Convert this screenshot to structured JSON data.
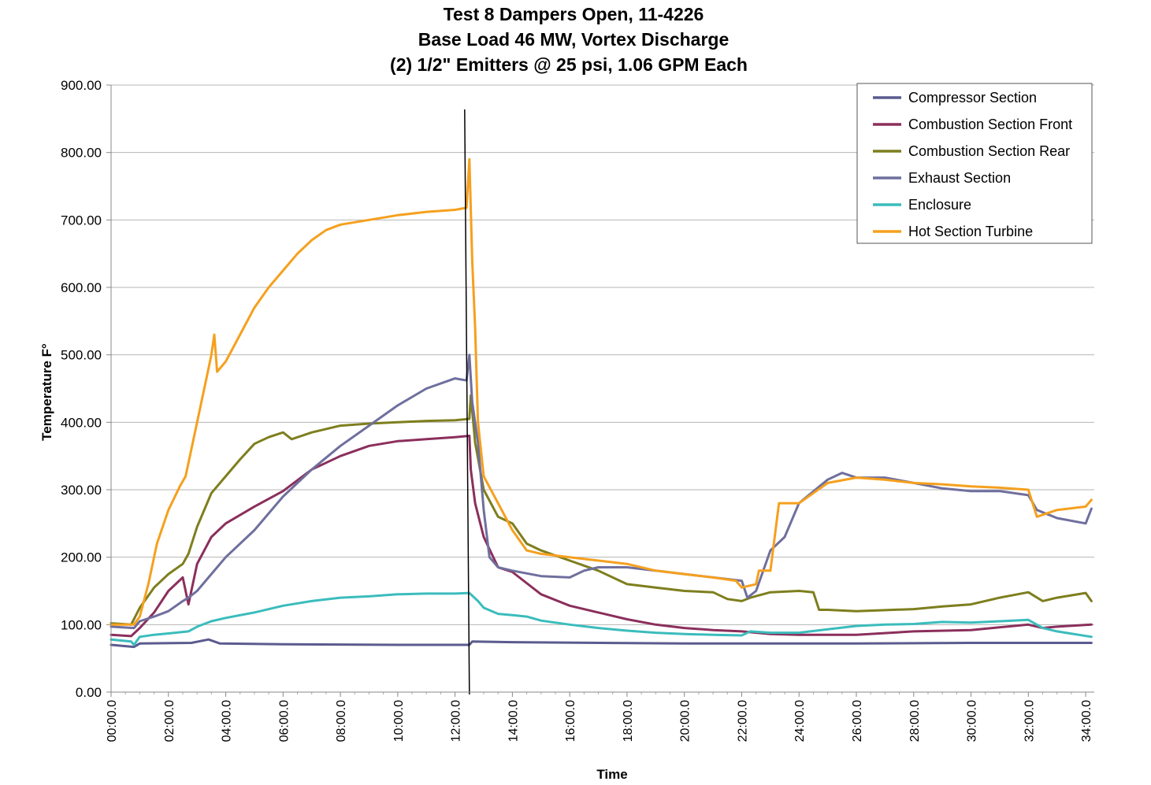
{
  "chart_data": {
    "type": "line",
    "title_lines": [
      "Test 8 Dampers Open, 11-4226",
      "Base Load 46 MW, Vortex Discharge",
      "(2) 1/2\" Emitters @ 25 psi, 1.06 GPM Each"
    ],
    "xlabel": "Time",
    "ylabel": "Temperature F°",
    "x_unit": "minutes",
    "xlim": [
      0,
      34.3
    ],
    "ylim": [
      0,
      900
    ],
    "y_ticks": [
      "0.00",
      "100.00",
      "200.00",
      "300.00",
      "400.00",
      "500.00",
      "600.00",
      "700.00",
      "800.00",
      "900.00"
    ],
    "x_ticks": [
      "00:00.0",
      "02:00.0",
      "04:00.0",
      "06:00.0",
      "08:00.0",
      "10:00.0",
      "12:00.0",
      "14:00.0",
      "16:00.0",
      "18:00.0",
      "20:00.0",
      "22:00.0",
      "24:00.0",
      "26:00.0",
      "28:00.0",
      "30:00.0",
      "32:00.0",
      "34:00.0"
    ],
    "grid": "horizontal",
    "legend_position": "top-right",
    "vertical_marker_x": 12.5,
    "series": [
      {
        "name": "Compressor Section",
        "color": "#5b5b8f",
        "points": [
          [
            0,
            70
          ],
          [
            0.8,
            67
          ],
          [
            1,
            72
          ],
          [
            2.8,
            73
          ],
          [
            3.4,
            78
          ],
          [
            3.8,
            72
          ],
          [
            6,
            71
          ],
          [
            10,
            70
          ],
          [
            12.5,
            70
          ],
          [
            12.6,
            75
          ],
          [
            14,
            74
          ],
          [
            20,
            72
          ],
          [
            26,
            72
          ],
          [
            30,
            73
          ],
          [
            34.2,
            73
          ]
        ]
      },
      {
        "name": "Combustion Section Front",
        "color": "#8b2f5c",
        "points": [
          [
            0,
            85
          ],
          [
            0.7,
            83
          ],
          [
            1,
            95
          ],
          [
            1.5,
            118
          ],
          [
            2,
            150
          ],
          [
            2.5,
            170
          ],
          [
            2.7,
            130
          ],
          [
            3,
            190
          ],
          [
            3.5,
            230
          ],
          [
            4,
            250
          ],
          [
            5,
            275
          ],
          [
            6,
            298
          ],
          [
            7,
            330
          ],
          [
            8,
            350
          ],
          [
            9,
            365
          ],
          [
            10,
            372
          ],
          [
            11,
            375
          ],
          [
            12,
            378
          ],
          [
            12.5,
            380
          ],
          [
            12.55,
            330
          ],
          [
            12.7,
            280
          ],
          [
            13,
            230
          ],
          [
            13.5,
            185
          ],
          [
            14,
            178
          ],
          [
            15,
            145
          ],
          [
            16,
            128
          ],
          [
            17,
            118
          ],
          [
            18,
            108
          ],
          [
            19,
            100
          ],
          [
            20,
            95
          ],
          [
            21,
            92
          ],
          [
            22,
            90
          ],
          [
            23,
            86
          ],
          [
            24,
            85
          ],
          [
            26,
            85
          ],
          [
            28,
            90
          ],
          [
            30,
            92
          ],
          [
            32,
            100
          ],
          [
            32.5,
            95
          ],
          [
            33,
            97
          ],
          [
            34.2,
            100
          ]
        ]
      },
      {
        "name": "Combustion Section Rear",
        "color": "#7e7e1e",
        "points": [
          [
            0,
            102
          ],
          [
            0.7,
            100
          ],
          [
            1,
            125
          ],
          [
            1.5,
            155
          ],
          [
            2,
            175
          ],
          [
            2.5,
            190
          ],
          [
            2.7,
            205
          ],
          [
            3,
            245
          ],
          [
            3.5,
            295
          ],
          [
            4,
            320
          ],
          [
            4.5,
            345
          ],
          [
            5,
            368
          ],
          [
            5.5,
            378
          ],
          [
            6,
            385
          ],
          [
            6.3,
            375
          ],
          [
            7,
            385
          ],
          [
            8,
            395
          ],
          [
            9,
            398
          ],
          [
            10,
            400
          ],
          [
            11,
            402
          ],
          [
            12,
            403
          ],
          [
            12.5,
            405
          ],
          [
            12.55,
            440
          ],
          [
            12.7,
            370
          ],
          [
            13,
            300
          ],
          [
            13.5,
            260
          ],
          [
            14,
            250
          ],
          [
            14.5,
            220
          ],
          [
            15,
            210
          ],
          [
            16,
            195
          ],
          [
            17,
            180
          ],
          [
            18,
            160
          ],
          [
            19,
            155
          ],
          [
            20,
            150
          ],
          [
            21,
            148
          ],
          [
            21.5,
            138
          ],
          [
            22,
            135
          ],
          [
            22.3,
            140
          ],
          [
            23,
            148
          ],
          [
            24,
            150
          ],
          [
            24.5,
            148
          ],
          [
            24.7,
            122
          ],
          [
            25,
            122
          ],
          [
            26,
            120
          ],
          [
            28,
            123
          ],
          [
            29,
            127
          ],
          [
            30,
            130
          ],
          [
            31,
            140
          ],
          [
            32,
            148
          ],
          [
            32.5,
            135
          ],
          [
            33,
            140
          ],
          [
            34,
            147
          ],
          [
            34.2,
            135
          ]
        ]
      },
      {
        "name": "Exhaust Section",
        "color": "#6f6f9e",
        "points": [
          [
            0,
            97
          ],
          [
            0.8,
            95
          ],
          [
            1,
            105
          ],
          [
            1.5,
            112
          ],
          [
            2,
            120
          ],
          [
            2.5,
            135
          ],
          [
            2.7,
            140
          ],
          [
            3,
            150
          ],
          [
            3.5,
            175
          ],
          [
            4,
            200
          ],
          [
            5,
            240
          ],
          [
            6,
            290
          ],
          [
            7,
            330
          ],
          [
            8,
            365
          ],
          [
            9,
            395
          ],
          [
            10,
            425
          ],
          [
            11,
            450
          ],
          [
            12,
            465
          ],
          [
            12.4,
            462
          ],
          [
            12.5,
            500
          ],
          [
            12.6,
            430
          ],
          [
            12.8,
            370
          ],
          [
            13,
            270
          ],
          [
            13.2,
            200
          ],
          [
            13.5,
            185
          ],
          [
            14,
            180
          ],
          [
            15,
            172
          ],
          [
            16,
            170
          ],
          [
            16.5,
            180
          ],
          [
            17,
            185
          ],
          [
            18,
            185
          ],
          [
            19,
            180
          ],
          [
            20,
            175
          ],
          [
            21,
            170
          ],
          [
            22,
            165
          ],
          [
            22.2,
            140
          ],
          [
            22.5,
            150
          ],
          [
            23,
            210
          ],
          [
            23.5,
            230
          ],
          [
            24,
            280
          ],
          [
            25,
            315
          ],
          [
            25.5,
            325
          ],
          [
            26,
            318
          ],
          [
            27,
            318
          ],
          [
            28,
            310
          ],
          [
            29,
            302
          ],
          [
            30,
            298
          ],
          [
            31,
            298
          ],
          [
            32,
            292
          ],
          [
            32.3,
            270
          ],
          [
            33,
            258
          ],
          [
            34,
            250
          ],
          [
            34.2,
            272
          ]
        ]
      },
      {
        "name": "Enclosure",
        "color": "#3bbcbc",
        "points": [
          [
            0,
            78
          ],
          [
            0.7,
            75
          ],
          [
            0.8,
            70
          ],
          [
            1,
            82
          ],
          [
            1.5,
            85
          ],
          [
            2,
            87
          ],
          [
            2.7,
            90
          ],
          [
            3,
            97
          ],
          [
            3.5,
            105
          ],
          [
            4,
            110
          ],
          [
            5,
            118
          ],
          [
            6,
            128
          ],
          [
            7,
            135
          ],
          [
            8,
            140
          ],
          [
            9,
            142
          ],
          [
            10,
            145
          ],
          [
            11,
            146
          ],
          [
            12,
            146
          ],
          [
            12.5,
            147
          ],
          [
            12.8,
            135
          ],
          [
            13,
            125
          ],
          [
            13.5,
            116
          ],
          [
            14,
            114
          ],
          [
            14.5,
            112
          ],
          [
            15,
            106
          ],
          [
            16,
            100
          ],
          [
            17,
            95
          ],
          [
            18,
            91
          ],
          [
            19,
            88
          ],
          [
            20,
            86
          ],
          [
            21,
            85
          ],
          [
            22,
            84
          ],
          [
            22.3,
            90
          ],
          [
            23,
            88
          ],
          [
            24,
            88
          ],
          [
            25,
            93
          ],
          [
            26,
            98
          ],
          [
            27,
            100
          ],
          [
            28,
            101
          ],
          [
            29,
            104
          ],
          [
            30,
            103
          ],
          [
            31,
            105
          ],
          [
            32,
            107
          ],
          [
            32.5,
            95
          ],
          [
            33,
            90
          ],
          [
            34.2,
            82
          ]
        ]
      },
      {
        "name": "Hot Section Turbine",
        "color": "#f5a01e",
        "points": [
          [
            0,
            100
          ],
          [
            0.8,
            100
          ],
          [
            1,
            112
          ],
          [
            1.3,
            160
          ],
          [
            1.6,
            220
          ],
          [
            2,
            270
          ],
          [
            2.4,
            305
          ],
          [
            2.6,
            320
          ],
          [
            3,
            400
          ],
          [
            3.3,
            460
          ],
          [
            3.5,
            500
          ],
          [
            3.6,
            530
          ],
          [
            3.7,
            475
          ],
          [
            4,
            490
          ],
          [
            4.5,
            530
          ],
          [
            5,
            570
          ],
          [
            5.5,
            600
          ],
          [
            6,
            625
          ],
          [
            6.5,
            650
          ],
          [
            7,
            670
          ],
          [
            7.5,
            685
          ],
          [
            8,
            693
          ],
          [
            9,
            700
          ],
          [
            10,
            707
          ],
          [
            11,
            712
          ],
          [
            12,
            715
          ],
          [
            12.4,
            718
          ],
          [
            12.5,
            790
          ],
          [
            12.6,
            640
          ],
          [
            12.7,
            540
          ],
          [
            12.8,
            400
          ],
          [
            13,
            320
          ],
          [
            13.5,
            280
          ],
          [
            14,
            240
          ],
          [
            14.5,
            210
          ],
          [
            15,
            205
          ],
          [
            16,
            200
          ],
          [
            17,
            195
          ],
          [
            18,
            190
          ],
          [
            19,
            180
          ],
          [
            20,
            175
          ],
          [
            21,
            170
          ],
          [
            21.8,
            165
          ],
          [
            22,
            155
          ],
          [
            22.5,
            160
          ],
          [
            22.6,
            180
          ],
          [
            23,
            180
          ],
          [
            23.3,
            280
          ],
          [
            24,
            280
          ],
          [
            24.5,
            295
          ],
          [
            25,
            310
          ],
          [
            26,
            318
          ],
          [
            27,
            315
          ],
          [
            28,
            310
          ],
          [
            29,
            308
          ],
          [
            30,
            305
          ],
          [
            31,
            303
          ],
          [
            32,
            300
          ],
          [
            32.3,
            260
          ],
          [
            33,
            270
          ],
          [
            34,
            275
          ],
          [
            34.2,
            285
          ]
        ]
      }
    ]
  }
}
